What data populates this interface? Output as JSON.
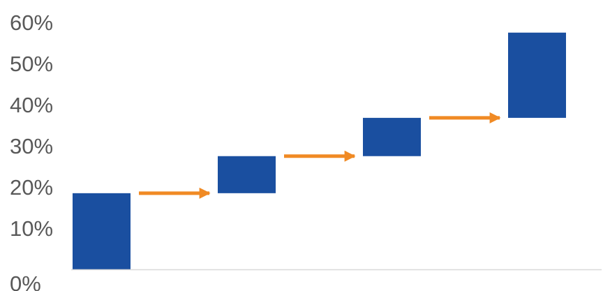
{
  "chart_data": {
    "type": "bar",
    "subtype": "waterfall",
    "categories": [
      "",
      "",
      "",
      ""
    ],
    "segments": [
      {
        "start": 0,
        "end": 18.5
      },
      {
        "start": 18.5,
        "end": 27.5
      },
      {
        "start": 27.5,
        "end": 36.8
      },
      {
        "start": 36.8,
        "end": 57.5
      }
    ],
    "values": [
      18.5,
      9.0,
      9.3,
      20.7
    ],
    "ylim": [
      0,
      60
    ],
    "yticks": [
      {
        "value": 0,
        "label": "0%"
      },
      {
        "value": 10,
        "label": "10%"
      },
      {
        "value": 20,
        "label": "20%"
      },
      {
        "value": 30,
        "label": "30%"
      },
      {
        "value": 40,
        "label": "40%"
      },
      {
        "value": 50,
        "label": "50%"
      },
      {
        "value": 60,
        "label": "60%"
      }
    ],
    "title": "",
    "xlabel": "",
    "ylabel": "",
    "grid": false,
    "connectors": "arrows",
    "colors": {
      "bar": "#1a4fa0",
      "arrow": "#f08a24",
      "axis": "#d9d9d9",
      "tick_text": "#595959"
    }
  }
}
